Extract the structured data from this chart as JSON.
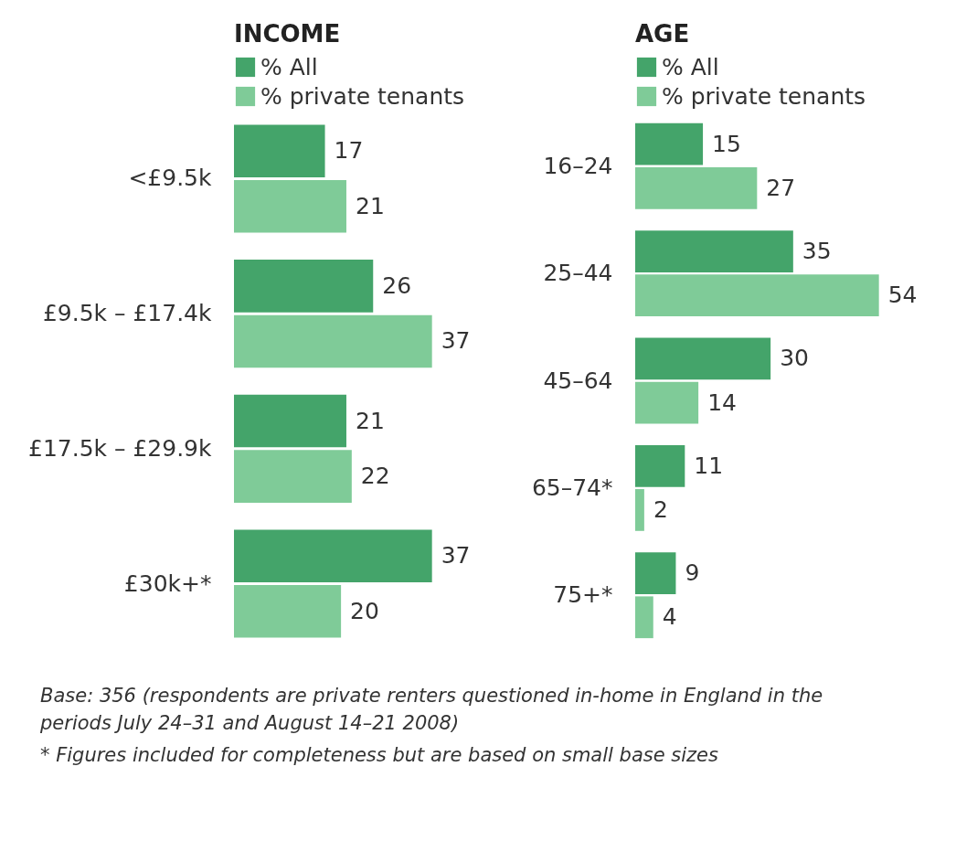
{
  "chart_data": [
    {
      "type": "bar",
      "orientation": "horizontal",
      "title": "INCOME",
      "categories": [
        "<£9.5k",
        "£9.5k – £17.4k",
        "£17.5k – £29.9k",
        "£30k+*"
      ],
      "series": [
        {
          "name": "% All",
          "color": "#44a46a",
          "values": [
            17,
            26,
            21,
            37
          ]
        },
        {
          "name": "% private tenants",
          "color": "#7fcb98",
          "values": [
            21,
            37,
            22,
            20
          ]
        }
      ],
      "data_labels": true,
      "legend": "top",
      "grid": false,
      "annotations": [
        "Base: 356  (respondents are private renters questioned in-home in England in the periods July 24–31 and August 14–21 2008)",
        "* Figures included for completeness but are based on small base sizes"
      ]
    },
    {
      "type": "bar",
      "orientation": "horizontal",
      "title": "AGE",
      "categories": [
        "16–24",
        "25–44",
        "45–64",
        "65–74*",
        "75+*"
      ],
      "series": [
        {
          "name": "% All",
          "color": "#44a46a",
          "values": [
            15,
            35,
            30,
            11,
            9
          ]
        },
        {
          "name": "% private tenants",
          "color": "#7fcb98",
          "values": [
            27,
            54,
            14,
            2,
            4
          ]
        }
      ],
      "data_labels": true,
      "legend": "top",
      "grid": false
    }
  ]
}
